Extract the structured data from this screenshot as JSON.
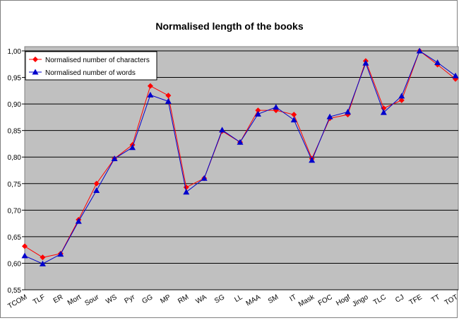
{
  "chart_data": {
    "type": "line",
    "title": "Normalised length of the books",
    "categories": [
      "TCOM",
      "TLF",
      "ER",
      "Mort",
      "Sour",
      "WS",
      "Pyr",
      "GG",
      "MP",
      "RM",
      "WA",
      "SG",
      "LL",
      "MAA",
      "SM",
      "IT",
      "Mask",
      "FOC",
      "Hogf",
      "Jingo",
      "TLC",
      "CJ",
      "TFE",
      "TT",
      "TOT"
    ],
    "series": [
      {
        "name": "Normalised number of characters",
        "color": "#ff0000",
        "marker": "diamond",
        "values": [
          0.632,
          0.611,
          0.618,
          0.682,
          0.75,
          0.797,
          0.823,
          0.934,
          0.916,
          0.743,
          0.76,
          0.849,
          0.828,
          0.888,
          0.888,
          0.88,
          0.797,
          0.873,
          0.88,
          0.981,
          0.892,
          0.907,
          1.0,
          0.974,
          0.947
        ]
      },
      {
        "name": "Normalised number of words",
        "color": "#0000cc",
        "marker": "triangle",
        "values": [
          0.614,
          0.599,
          0.617,
          0.679,
          0.737,
          0.797,
          0.818,
          0.917,
          0.905,
          0.734,
          0.76,
          0.851,
          0.828,
          0.881,
          0.894,
          0.87,
          0.794,
          0.876,
          0.885,
          0.977,
          0.884,
          0.915,
          1.0,
          0.978,
          0.953
        ]
      }
    ],
    "ylim": [
      0.55,
      1.0
    ],
    "yticks": [
      {
        "value": 0.55,
        "label": "0,55"
      },
      {
        "value": 0.6,
        "label": "0,60"
      },
      {
        "value": 0.65,
        "label": "0,65"
      },
      {
        "value": 0.7,
        "label": "0,70"
      },
      {
        "value": 0.75,
        "label": "0,75"
      },
      {
        "value": 0.8,
        "label": "0,80"
      },
      {
        "value": 0.85,
        "label": "0,85"
      },
      {
        "value": 0.9,
        "label": "0,90"
      },
      {
        "value": 0.95,
        "label": "0,95"
      },
      {
        "value": 1.0,
        "label": "1,00"
      }
    ],
    "grid": true,
    "legend": "top-left",
    "background": "#c0c0c0"
  }
}
